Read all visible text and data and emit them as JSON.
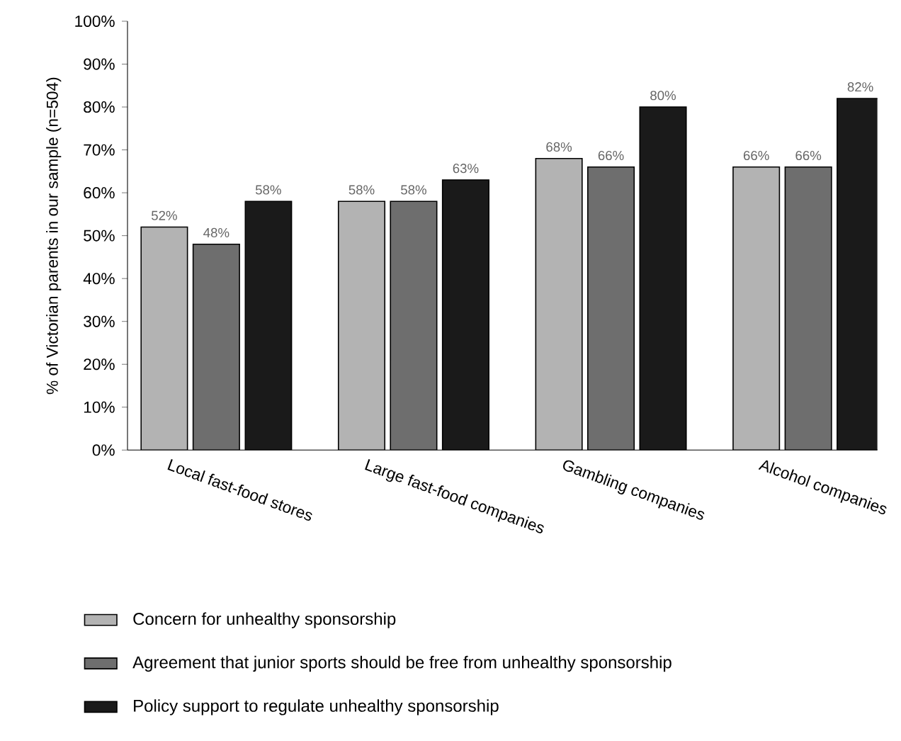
{
  "chart_data": {
    "type": "bar",
    "ylabel": "% of Victorian parents in our sample (n=504)",
    "categories": [
      "Local fast-food stores",
      "Large fast-food companies",
      "Gambling companies",
      "Alcohol companies"
    ],
    "series": [
      {
        "name": "Concern for unhealthy  sponsorship",
        "color": "#b3b3b3",
        "values": [
          52,
          58,
          68,
          66
        ],
        "value_labels": [
          "52%",
          "58%",
          "68%",
          "66%"
        ]
      },
      {
        "name": "Agreement that junior sports should be free from unhealthy sponsorship",
        "color": "#6e6e6e",
        "values": [
          48,
          58,
          66,
          66
        ],
        "value_labels": [
          "48%",
          "58%",
          "66%",
          "66%"
        ]
      },
      {
        "name": "Policy support to regulate unhealthy  sponsorship",
        "color": "#1a1a1a",
        "values": [
          58,
          63,
          80,
          82
        ],
        "value_labels": [
          "58%",
          "63%",
          "80%",
          "82%"
        ]
      }
    ],
    "ylim": [
      0,
      100
    ],
    "yticks": [
      {
        "value": 0,
        "label": "0%"
      },
      {
        "value": 10,
        "label": "10%"
      },
      {
        "value": 20,
        "label": "20%"
      },
      {
        "value": 30,
        "label": "30%"
      },
      {
        "value": 40,
        "label": "40%"
      },
      {
        "value": 50,
        "label": "50%"
      },
      {
        "value": 60,
        "label": "60%"
      },
      {
        "value": 70,
        "label": "70%"
      },
      {
        "value": 80,
        "label": "80%"
      },
      {
        "value": 90,
        "label": "90%"
      },
      {
        "value": 100,
        "label": "100%"
      }
    ],
    "grid": false,
    "legend": "bottom"
  }
}
